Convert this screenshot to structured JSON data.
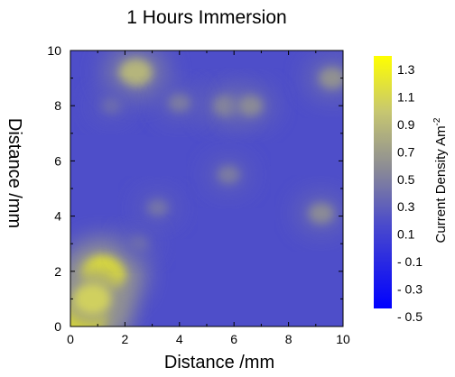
{
  "chart_data": {
    "type": "heatmap",
    "title": "1 Hours Immersion",
    "xlabel": "Distance /mm",
    "ylabel": "Distance /mm",
    "xlim": [
      0,
      10
    ],
    "ylim": [
      0,
      10
    ],
    "x_ticks": [
      "0",
      "2",
      "4",
      "6",
      "8",
      "10"
    ],
    "y_ticks": [
      "0",
      "2",
      "4",
      "6",
      "8",
      "10"
    ],
    "colorbar": {
      "label": "Current Density Am",
      "label_superscript": "-2",
      "range": [
        -0.5,
        1.4
      ],
      "ticks": [
        "1.3",
        "1.1",
        "0.9",
        "0.7",
        "0.5",
        "0.3",
        "0.1",
        "- 0.1",
        "- 0.3",
        "- 0.5"
      ],
      "tick_values": [
        1.3,
        1.1,
        0.9,
        0.7,
        0.5,
        0.3,
        0.1,
        -0.1,
        -0.3,
        -0.5
      ],
      "colors": {
        "low": "#0000ff",
        "mid": "#7e7e8a",
        "high": "#ffff00"
      }
    },
    "background_level": 0.15,
    "features": [
      {
        "x": 0.5,
        "y": 0.4,
        "value": 1.35
      },
      {
        "x": 1.2,
        "y": 1.9,
        "value": 1.25
      },
      {
        "x": 0.8,
        "y": 1.0,
        "value": 1.05
      },
      {
        "x": 2.4,
        "y": 9.2,
        "value": 0.85
      },
      {
        "x": 5.7,
        "y": 8.0,
        "value": 0.55
      },
      {
        "x": 6.6,
        "y": 8.0,
        "value": 0.55
      },
      {
        "x": 9.6,
        "y": 9.0,
        "value": 0.6
      },
      {
        "x": 9.2,
        "y": 4.1,
        "value": 0.55
      },
      {
        "x": 4.0,
        "y": 8.1,
        "value": 0.45
      },
      {
        "x": 5.8,
        "y": 5.5,
        "value": 0.45
      },
      {
        "x": 3.2,
        "y": 4.3,
        "value": 0.4
      },
      {
        "x": 1.5,
        "y": 8.0,
        "value": 0.35
      },
      {
        "x": 2.5,
        "y": 3.0,
        "value": 0.35
      }
    ]
  }
}
